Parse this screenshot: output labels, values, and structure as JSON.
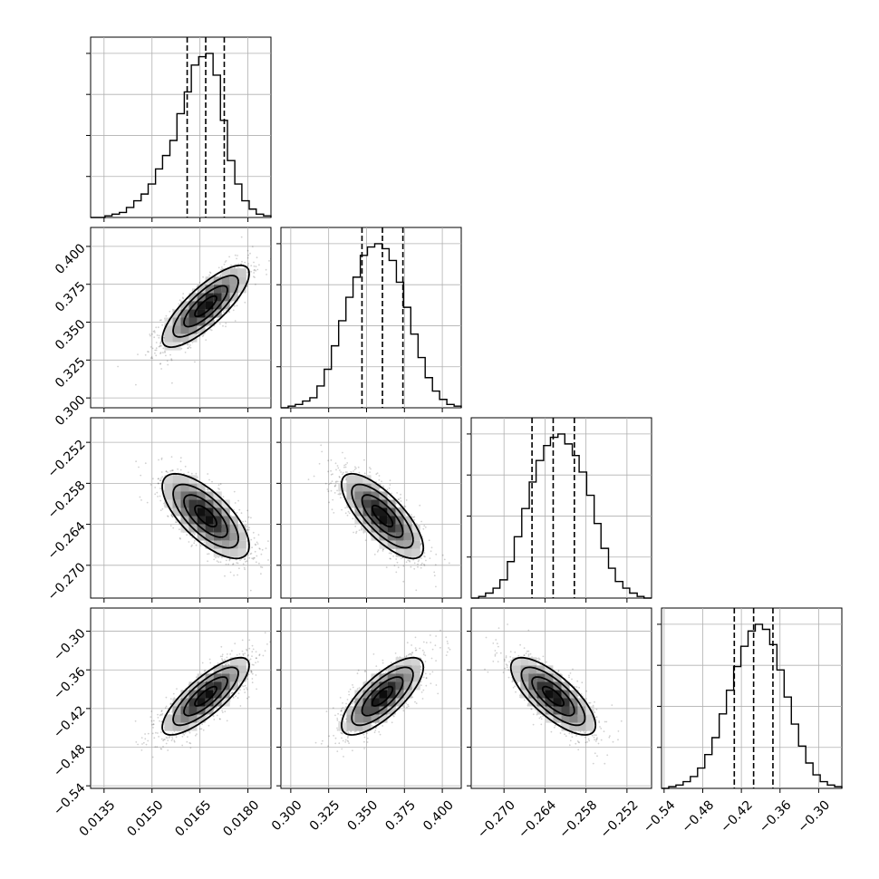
{
  "chart_data": {
    "type": "corner",
    "title": "",
    "parameters": [
      {
        "ticks": [
          "0.0135",
          "0.0150",
          "0.0165",
          "0.0180"
        ],
        "tick_values": [
          0.0135,
          0.015,
          0.0165,
          0.018
        ],
        "range": [
          0.01308,
          0.01872
        ],
        "mean": 0.01668,
        "std": 0.00068,
        "quantiles": [
          0.0161,
          0.01668,
          0.01726
        ],
        "histogram": {
          "bin_edges": [
            0.01308,
            0.0133,
            0.01353,
            0.01375,
            0.01398,
            0.0142,
            0.01443,
            0.01466,
            0.01488,
            0.01511,
            0.01533,
            0.01556,
            0.01578,
            0.01601,
            0.01623,
            0.01646,
            0.01669,
            0.01691,
            0.01714,
            0.01736,
            0.01759,
            0.01781,
            0.01804,
            0.01826,
            0.01849,
            0.01872
          ],
          "counts": [
            0,
            0,
            1,
            2,
            3,
            6,
            10,
            14,
            20,
            29,
            37,
            46,
            62,
            75,
            91,
            96,
            98,
            85,
            58,
            34,
            20,
            10,
            5,
            2,
            1
          ]
        }
      },
      {
        "ticks": [
          "0.300",
          "0.325",
          "0.350",
          "0.375",
          "0.400"
        ],
        "tick_values": [
          0.3,
          0.325,
          0.35,
          0.375,
          0.4
        ],
        "range": [
          0.2935,
          0.4125
        ],
        "mean": 0.3605,
        "std": 0.0135,
        "quantiles": [
          0.347,
          0.3605,
          0.374
        ],
        "histogram": {
          "bin_edges": [
            0.2935,
            0.2983,
            0.303,
            0.3078,
            0.3126,
            0.3173,
            0.3221,
            0.3268,
            0.3316,
            0.3364,
            0.3411,
            0.3459,
            0.3506,
            0.3554,
            0.3602,
            0.3649,
            0.3697,
            0.3744,
            0.3792,
            0.384,
            0.3887,
            0.3935,
            0.3982,
            0.403,
            0.4078,
            0.4125
          ],
          "counts": [
            0,
            1,
            2,
            4,
            6,
            13,
            23,
            37,
            52,
            66,
            78,
            91,
            96,
            98,
            95,
            88,
            75,
            60,
            44,
            30,
            18,
            10,
            5,
            2,
            1
          ]
        }
      },
      {
        "ticks": [
          "−0.270",
          "−0.264",
          "−0.258",
          "−0.252"
        ],
        "tick_values": [
          -0.27,
          -0.264,
          -0.258,
          -0.252
        ],
        "range": [
          -0.2748,
          -0.2484
        ],
        "mean": -0.2628,
        "std": 0.0031,
        "quantiles": [
          -0.2659,
          -0.2628,
          -0.2597
        ],
        "histogram": {
          "bin_edges": [
            -0.2748,
            -0.2737,
            -0.2727,
            -0.2716,
            -0.2706,
            -0.2695,
            -0.2685,
            -0.2674,
            -0.2663,
            -0.2653,
            -0.2642,
            -0.2632,
            -0.2621,
            -0.2611,
            -0.26,
            -0.259,
            -0.2579,
            -0.2568,
            -0.2558,
            -0.2547,
            -0.2537,
            -0.2526,
            -0.2516,
            -0.2505,
            -0.2495,
            -0.2484
          ],
          "counts": [
            0,
            1,
            3,
            6,
            11,
            22,
            37,
            54,
            70,
            83,
            92,
            97,
            99,
            93,
            86,
            76,
            62,
            45,
            30,
            18,
            10,
            6,
            3,
            1,
            0
          ]
        }
      },
      {
        "ticks": [
          "−0.54",
          "−0.48",
          "−0.42",
          "−0.36",
          "−0.30"
        ],
        "tick_values": [
          -0.54,
          -0.48,
          -0.42,
          -0.36,
          -0.3
        ],
        "range": [
          -0.544,
          -0.264
        ],
        "mean": -0.401,
        "std": 0.03,
        "quantiles": [
          -0.431,
          -0.401,
          -0.371
        ],
        "histogram": {
          "bin_edges": [
            -0.544,
            -0.5328,
            -0.5216,
            -0.5104,
            -0.4992,
            -0.488,
            -0.4768,
            -0.4656,
            -0.4544,
            -0.4432,
            -0.432,
            -0.4208,
            -0.4096,
            -0.3984,
            -0.3872,
            -0.376,
            -0.3648,
            -0.3536,
            -0.3424,
            -0.3312,
            -0.32,
            -0.3088,
            -0.2976,
            -0.2864,
            -0.2752,
            -0.264
          ],
          "counts": [
            0,
            1,
            2,
            4,
            7,
            12,
            20,
            30,
            44,
            58,
            72,
            84,
            93,
            97,
            94,
            85,
            70,
            54,
            38,
            25,
            15,
            8,
            4,
            2,
            1
          ]
        }
      }
    ],
    "correlations": [
      {
        "pair": [
          1,
          0
        ],
        "rho": 0.8
      },
      {
        "pair": [
          2,
          0
        ],
        "rho": -0.7
      },
      {
        "pair": [
          2,
          1
        ],
        "rho": -0.75
      },
      {
        "pair": [
          3,
          0
        ],
        "rho": 0.8
      },
      {
        "pair": [
          3,
          1
        ],
        "rho": 0.75
      },
      {
        "pair": [
          3,
          2
        ],
        "rho": -0.75
      }
    ],
    "contour_levels_sigma": [
      0.5,
      1.0,
      1.5,
      2.0
    ],
    "grid": true,
    "quantile_lines": "dashed",
    "scatter_color": "#000000",
    "line_color": "#000000"
  }
}
